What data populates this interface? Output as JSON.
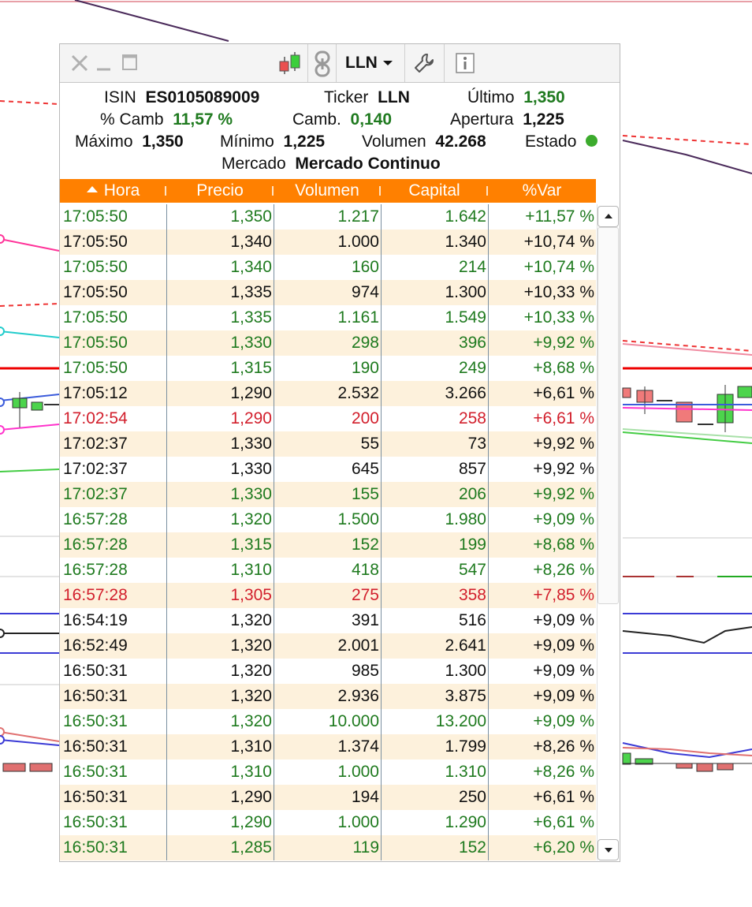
{
  "widget": {
    "ticker_selected": "LLN",
    "icons": {
      "close": "close-icon",
      "minimize": "minimize-icon",
      "maximize": "maximize-icon",
      "chart": "candlestick-chart-icon",
      "link": "link-icon",
      "settings": "wrench-icon",
      "info": "info-icon"
    }
  },
  "info": {
    "isin_label": "ISIN",
    "isin_value": "ES0105089009",
    "ticker_label": "Ticker",
    "ticker_value": "LLN",
    "ultimo_label": "Último",
    "ultimo_value": "1,350",
    "pct_cambio_label": "% Camb",
    "pct_cambio_value": "11,57 %",
    "cambio_label": "Camb.",
    "cambio_value": "0,140",
    "apertura_label": "Apertura",
    "apertura_value": "1,225",
    "maximo_label": "Máximo",
    "maximo_value": "1,350",
    "minimo_label": "Mínimo",
    "minimo_value": "1,225",
    "volumen_label": "Volumen",
    "volumen_value": "42.268",
    "estado_label": "Estado",
    "estado_color": "#3cab2d",
    "mercado_label": "Mercado",
    "mercado_value": "Mercado Continuo"
  },
  "table": {
    "headers": [
      "Hora",
      "Precio",
      "Volumen",
      "Capital",
      "%Var"
    ],
    "header_bg": "#ff8000",
    "row_colors": {
      "g": "#1f7a1f",
      "k": "#111111",
      "r": "#d21f2c"
    },
    "rows": [
      {
        "hora": "17:05:50",
        "precio": "1,350",
        "volumen": "1.217",
        "capital": "1.642",
        "var": "+11,57 %",
        "c": "g"
      },
      {
        "hora": "17:05:50",
        "precio": "1,340",
        "volumen": "1.000",
        "capital": "1.340",
        "var": "+10,74 %",
        "c": "k"
      },
      {
        "hora": "17:05:50",
        "precio": "1,340",
        "volumen": "160",
        "capital": "214",
        "var": "+10,74 %",
        "c": "g"
      },
      {
        "hora": "17:05:50",
        "precio": "1,335",
        "volumen": "974",
        "capital": "1.300",
        "var": "+10,33 %",
        "c": "k"
      },
      {
        "hora": "17:05:50",
        "precio": "1,335",
        "volumen": "1.161",
        "capital": "1.549",
        "var": "+10,33 %",
        "c": "g"
      },
      {
        "hora": "17:05:50",
        "precio": "1,330",
        "volumen": "298",
        "capital": "396",
        "var": "+9,92 %",
        "c": "g"
      },
      {
        "hora": "17:05:50",
        "precio": "1,315",
        "volumen": "190",
        "capital": "249",
        "var": "+8,68 %",
        "c": "g"
      },
      {
        "hora": "17:05:12",
        "precio": "1,290",
        "volumen": "2.532",
        "capital": "3.266",
        "var": "+6,61 %",
        "c": "k"
      },
      {
        "hora": "17:02:54",
        "precio": "1,290",
        "volumen": "200",
        "capital": "258",
        "var": "+6,61 %",
        "c": "r"
      },
      {
        "hora": "17:02:37",
        "precio": "1,330",
        "volumen": "55",
        "capital": "73",
        "var": "+9,92 %",
        "c": "k"
      },
      {
        "hora": "17:02:37",
        "precio": "1,330",
        "volumen": "645",
        "capital": "857",
        "var": "+9,92 %",
        "c": "k"
      },
      {
        "hora": "17:02:37",
        "precio": "1,330",
        "volumen": "155",
        "capital": "206",
        "var": "+9,92 %",
        "c": "g"
      },
      {
        "hora": "16:57:28",
        "precio": "1,320",
        "volumen": "1.500",
        "capital": "1.980",
        "var": "+9,09 %",
        "c": "g"
      },
      {
        "hora": "16:57:28",
        "precio": "1,315",
        "volumen": "152",
        "capital": "199",
        "var": "+8,68 %",
        "c": "g"
      },
      {
        "hora": "16:57:28",
        "precio": "1,310",
        "volumen": "418",
        "capital": "547",
        "var": "+8,26 %",
        "c": "g"
      },
      {
        "hora": "16:57:28",
        "precio": "1,305",
        "volumen": "275",
        "capital": "358",
        "var": "+7,85 %",
        "c": "r"
      },
      {
        "hora": "16:54:19",
        "precio": "1,320",
        "volumen": "391",
        "capital": "516",
        "var": "+9,09 %",
        "c": "k"
      },
      {
        "hora": "16:52:49",
        "precio": "1,320",
        "volumen": "2.001",
        "capital": "2.641",
        "var": "+9,09 %",
        "c": "k"
      },
      {
        "hora": "16:50:31",
        "precio": "1,320",
        "volumen": "985",
        "capital": "1.300",
        "var": "+9,09 %",
        "c": "k"
      },
      {
        "hora": "16:50:31",
        "precio": "1,320",
        "volumen": "2.936",
        "capital": "3.875",
        "var": "+9,09 %",
        "c": "k"
      },
      {
        "hora": "16:50:31",
        "precio": "1,320",
        "volumen": "10.000",
        "capital": "13.200",
        "var": "+9,09 %",
        "c": "g"
      },
      {
        "hora": "16:50:31",
        "precio": "1,310",
        "volumen": "1.374",
        "capital": "1.799",
        "var": "+8,26 %",
        "c": "k"
      },
      {
        "hora": "16:50:31",
        "precio": "1,310",
        "volumen": "1.000",
        "capital": "1.310",
        "var": "+8,26 %",
        "c": "g"
      },
      {
        "hora": "16:50:31",
        "precio": "1,290",
        "volumen": "194",
        "capital": "250",
        "var": "+6,61 %",
        "c": "k"
      },
      {
        "hora": "16:50:31",
        "precio": "1,290",
        "volumen": "1.000",
        "capital": "1.290",
        "var": "+6,61 %",
        "c": "g"
      },
      {
        "hora": "16:50:31",
        "precio": "1,285",
        "volumen": "119",
        "capital": "152",
        "var": "+6,20 %",
        "c": "g"
      }
    ]
  }
}
